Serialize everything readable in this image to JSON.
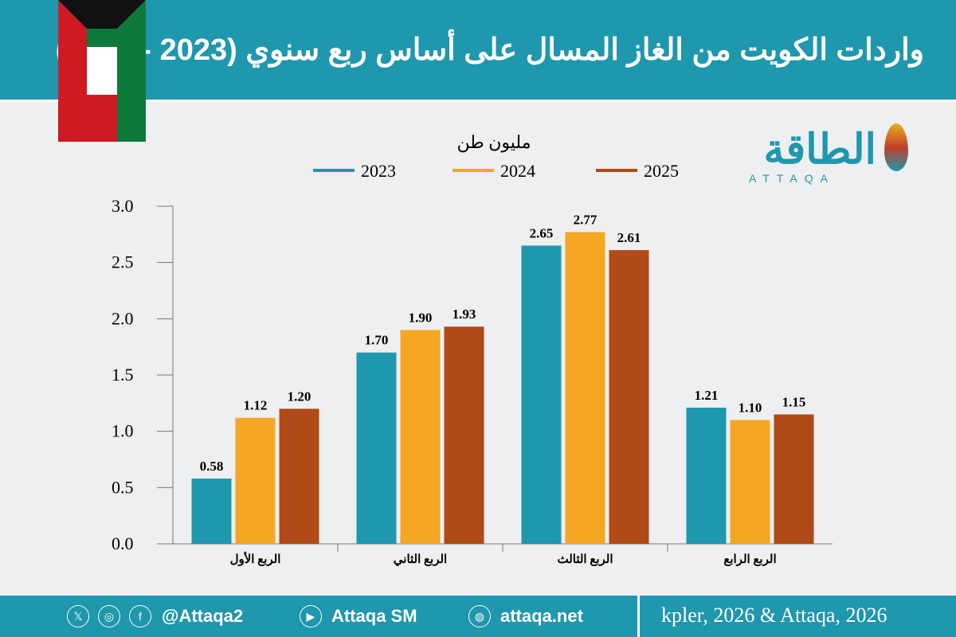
{
  "header": {
    "title": "واردات الكويت من الغاز المسال على أساس ربع سنوي (2023 - 2025)"
  },
  "logo": {
    "arabic": "الطاقة",
    "english": "ATTAQA"
  },
  "footer": {
    "handle": "@Attaqa2",
    "youtube": "Attaqa SM",
    "website": "attaqa.net",
    "source": "kpler, 2026 & Attaqa, 2026",
    "icons": [
      "x-icon",
      "instagram-icon",
      "facebook-icon",
      "youtube-icon",
      "globe-icon"
    ]
  },
  "chart_data": {
    "type": "bar",
    "unit_label": "مليون طن",
    "categories": [
      "الربع الأول",
      "الربع الثاني",
      "الربع الثالث",
      "الربع الرابع"
    ],
    "series": [
      {
        "name": "2023",
        "color": "#1f97ad",
        "values": [
          0.58,
          1.7,
          2.65,
          1.21
        ]
      },
      {
        "name": "2024",
        "color": "#f5a623",
        "values": [
          1.12,
          1.9,
          2.77,
          1.1
        ]
      },
      {
        "name": "2025",
        "color": "#b04a17",
        "values": [
          1.2,
          1.93,
          2.61,
          1.15
        ]
      }
    ],
    "ylim": [
      0,
      3.0
    ],
    "yticks": [
      "0.0",
      "0.5",
      "1.0",
      "1.5",
      "2.0",
      "2.5",
      "3.0"
    ],
    "legend": "top",
    "grid": false
  }
}
